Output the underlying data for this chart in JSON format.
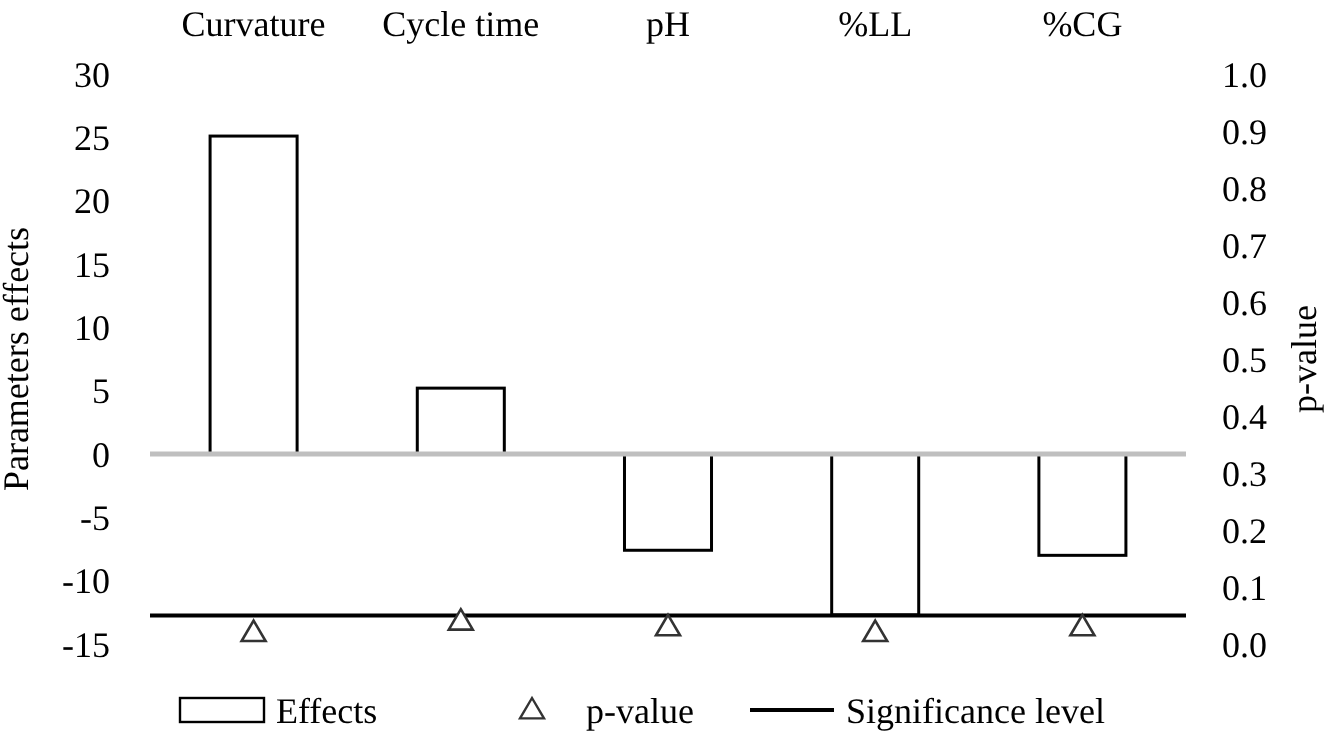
{
  "chart_data": {
    "type": "bar",
    "categories": [
      "Curvature",
      "Cycle time",
      "pH",
      "%LL",
      "%CG"
    ],
    "series": [
      {
        "name": "Effects",
        "color": "#ffffff",
        "values": [
          25.1,
          5.2,
          -7.6,
          -12.7,
          -8.0
        ]
      },
      {
        "name": "p-value",
        "type": "scatter",
        "axis": "y2",
        "marker": "triangle",
        "color": "#ffffff",
        "values": [
          0.02,
          0.04,
          0.03,
          0.02,
          0.03
        ]
      }
    ],
    "ylabel": "Parameters effects",
    "y2label": "p-value",
    "ylim": [
      -15,
      30
    ],
    "yticks": [
      -15,
      -10,
      -5,
      0,
      5,
      10,
      15,
      20,
      25,
      30
    ],
    "y2lim": [
      0,
      1
    ],
    "y2ticks": [
      {
        "value": 0,
        "label": "0.0"
      },
      0.1,
      0.2,
      0.3,
      0.4,
      0.5,
      0.6,
      0.7,
      0.8,
      0.9,
      {
        "value": 1,
        "label": "1.0"
      }
    ],
    "ref_lines": [
      {
        "axis": "y2",
        "value": 0.05,
        "label": "Significance level",
        "color": "#000000",
        "line_style": "solid"
      }
    ],
    "legend": "bottom"
  }
}
